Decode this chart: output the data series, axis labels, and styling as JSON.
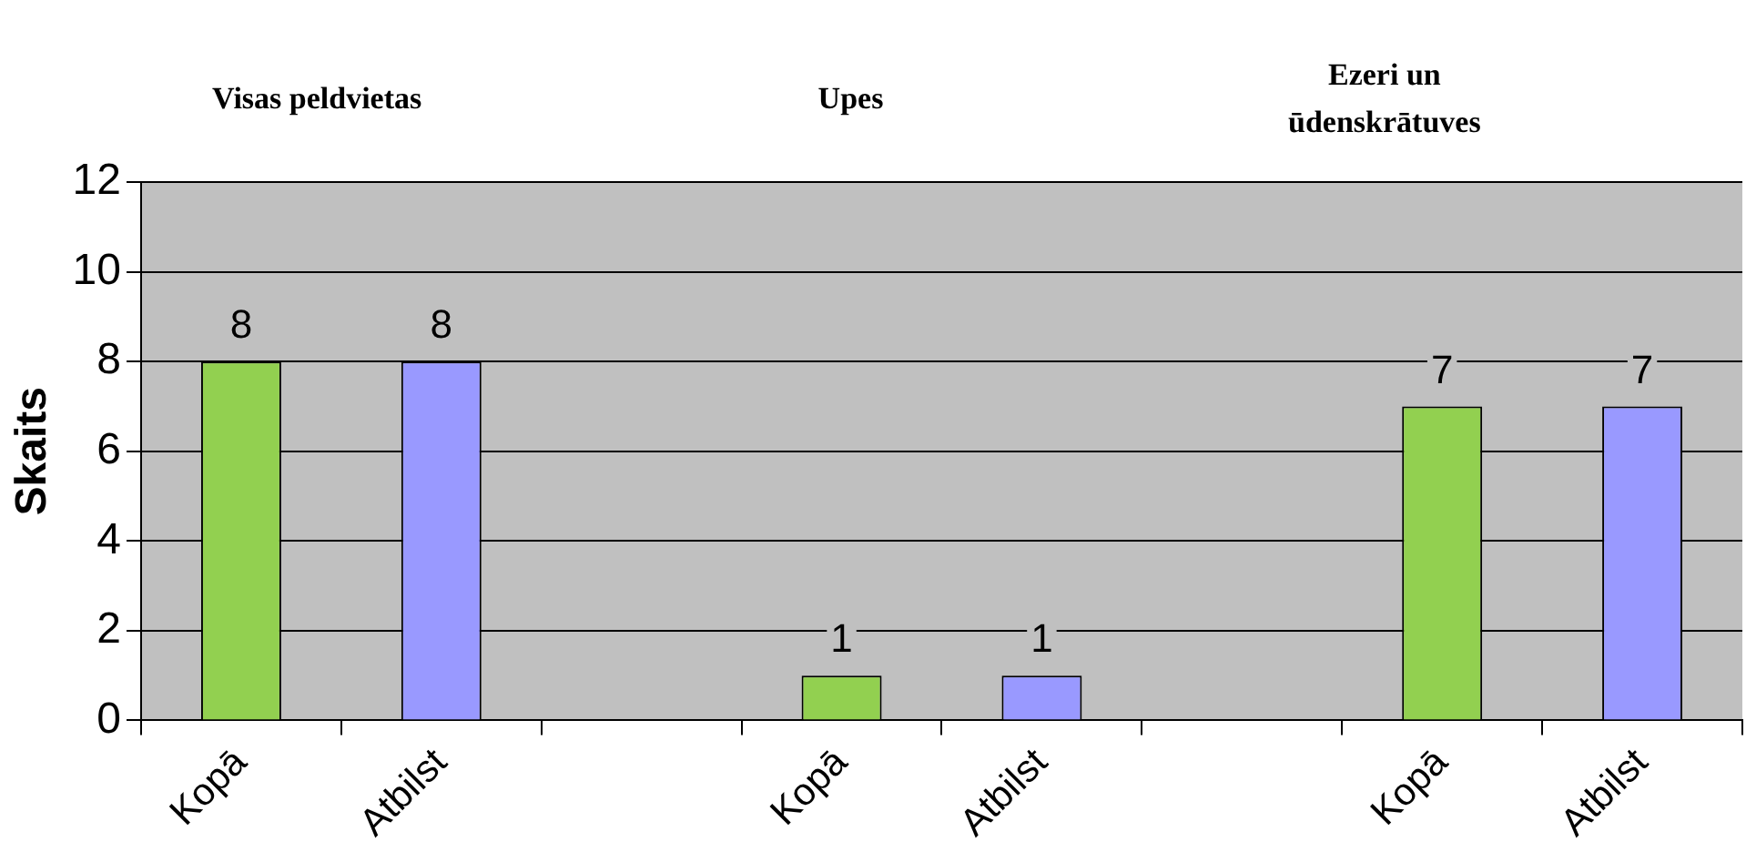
{
  "chart_data": {
    "type": "bar",
    "ylabel": "Skaits",
    "categories": [
      "Kopā",
      "Atbilst",
      null,
      "Kopā",
      "Atbilst",
      null,
      "Kopā",
      "Atbilst"
    ],
    "values": [
      8,
      8,
      null,
      1,
      1,
      null,
      7,
      7
    ],
    "colors": [
      "#92d050",
      "#9999ff",
      null,
      "#92d050",
      "#9999ff",
      null,
      "#92d050",
      "#9999ff"
    ],
    "ylim": [
      0,
      12
    ],
    "yticks": [
      0,
      2,
      4,
      6,
      8,
      10,
      12
    ],
    "grid": "y",
    "data_labels": true,
    "annotations": [
      "Visas peldvietas",
      "Upes",
      "Ezeri un\nūdenskrātuves"
    ]
  }
}
